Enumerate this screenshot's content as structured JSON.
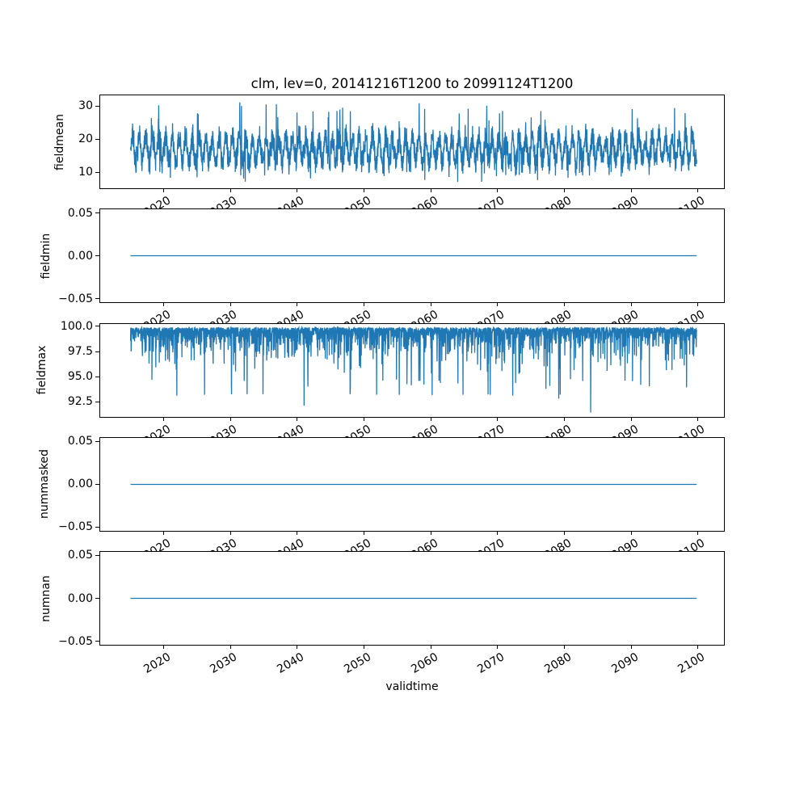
{
  "chart_data": {
    "type": "line",
    "title": "clm, lev=0, 20141216T1200 to 20991124T1200",
    "xlabel": "validtime",
    "line_color": "#1f77b4",
    "grid": false,
    "legend": "none",
    "x_start": 2014.96,
    "x_end": 2099.9,
    "xlim": [
      2010.4,
      2104.0
    ],
    "x_ticks": [
      2020,
      2030,
      2040,
      2050,
      2060,
      2070,
      2080,
      2090,
      2100
    ],
    "x_tick_labels": [
      "2020",
      "2030",
      "2040",
      "2050",
      "2060",
      "2070",
      "2080",
      "2090",
      "2100"
    ],
    "x_tick_rotation_deg": 30,
    "n_points": 3100,
    "subplots": [
      {
        "name": "fieldmean",
        "ylabel": "fieldmean",
        "yticks": [
          10,
          20,
          30
        ],
        "ytick_labels": [
          "10",
          "20",
          "30"
        ],
        "ylim": [
          4.9,
          33.4
        ],
        "series": {
          "kind": "seasonal-noise",
          "base": 16.8,
          "seasonal_amp": 3.8,
          "noise_amp": 5,
          "spike_up_max": 31.3,
          "spike_down_min": 6.8,
          "approx_min": 7,
          "approx_max": 31.2,
          "approx_mean": 17,
          "seed": 20141216
        }
      },
      {
        "name": "fieldmin",
        "ylabel": "fieldmin",
        "yticks": [
          -0.05,
          0,
          0.05
        ],
        "ytick_labels": [
          "−0.05",
          "0.00",
          "0.05"
        ],
        "ylim": [
          -0.055,
          0.055
        ],
        "series": {
          "kind": "constant",
          "value": 0
        }
      },
      {
        "name": "fieldmax",
        "ylabel": "fieldmax",
        "yticks": [
          92.5,
          95,
          97.5,
          100
        ],
        "ytick_labels": [
          "92.5",
          "95.0",
          "97.5",
          "100.0"
        ],
        "ylim": [
          90.95,
          100.35
        ],
        "series": {
          "kind": "downward-spikes",
          "base": 100,
          "small_scale": 0.45,
          "tail_prob": 0.15,
          "tail_offset": 0.8,
          "tail_scale": 1.6,
          "max_depth": 6.8,
          "approx_min": 91.3,
          "approx_max": 100,
          "deep_spikes": [
            {
              "x": 2021.9,
              "value": 93.1
            },
            {
              "x": 2041.0,
              "value": 92.1
            },
            {
              "x": 2058.2,
              "value": 94.6
            },
            {
              "x": 2072.3,
              "value": 93.1
            },
            {
              "x": 2079.2,
              "value": 92.8
            },
            {
              "x": 2084.0,
              "value": 91.4
            },
            {
              "x": 2091.5,
              "value": 94.2
            }
          ],
          "seed": 20991124
        }
      },
      {
        "name": "nummasked",
        "ylabel": "nummasked",
        "yticks": [
          -0.05,
          0,
          0.05
        ],
        "ytick_labels": [
          "−0.05",
          "0.00",
          "0.05"
        ],
        "ylim": [
          -0.055,
          0.055
        ],
        "series": {
          "kind": "constant",
          "value": 0
        }
      },
      {
        "name": "numnan",
        "ylabel": "numnan",
        "yticks": [
          -0.05,
          0,
          0.05
        ],
        "ytick_labels": [
          "−0.05",
          "0.00",
          "0.05"
        ],
        "ylim": [
          -0.055,
          0.055
        ],
        "series": {
          "kind": "constant",
          "value": 0
        }
      }
    ]
  }
}
